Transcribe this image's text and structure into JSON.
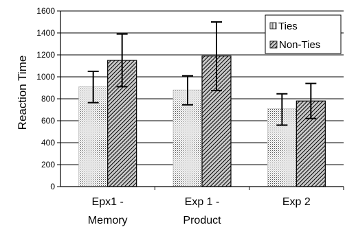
{
  "chart_data": {
    "type": "bar",
    "title": "",
    "xlabel": "",
    "ylabel": "Reaction Time",
    "ylim": [
      0,
      1600
    ],
    "yticks": [
      0,
      200,
      400,
      600,
      800,
      1000,
      1200,
      1400,
      1600
    ],
    "grid": true,
    "legend_position": "top-right",
    "categories": [
      [
        "Epx1 -",
        "Memory"
      ],
      [
        "Exp 1 -",
        "Product"
      ],
      [
        "Exp 2"
      ]
    ],
    "series": [
      {
        "name": "Ties",
        "pattern": "dotted",
        "values": [
          910,
          880,
          710
        ],
        "error_low": [
          765,
          745,
          560
        ],
        "error_high": [
          1050,
          1010,
          845
        ]
      },
      {
        "name": "Non-Ties",
        "pattern": "diagonal-hatch",
        "values": [
          1150,
          1190,
          780
        ],
        "error_low": [
          910,
          875,
          620
        ],
        "error_high": [
          1390,
          1500,
          940
        ]
      }
    ]
  }
}
